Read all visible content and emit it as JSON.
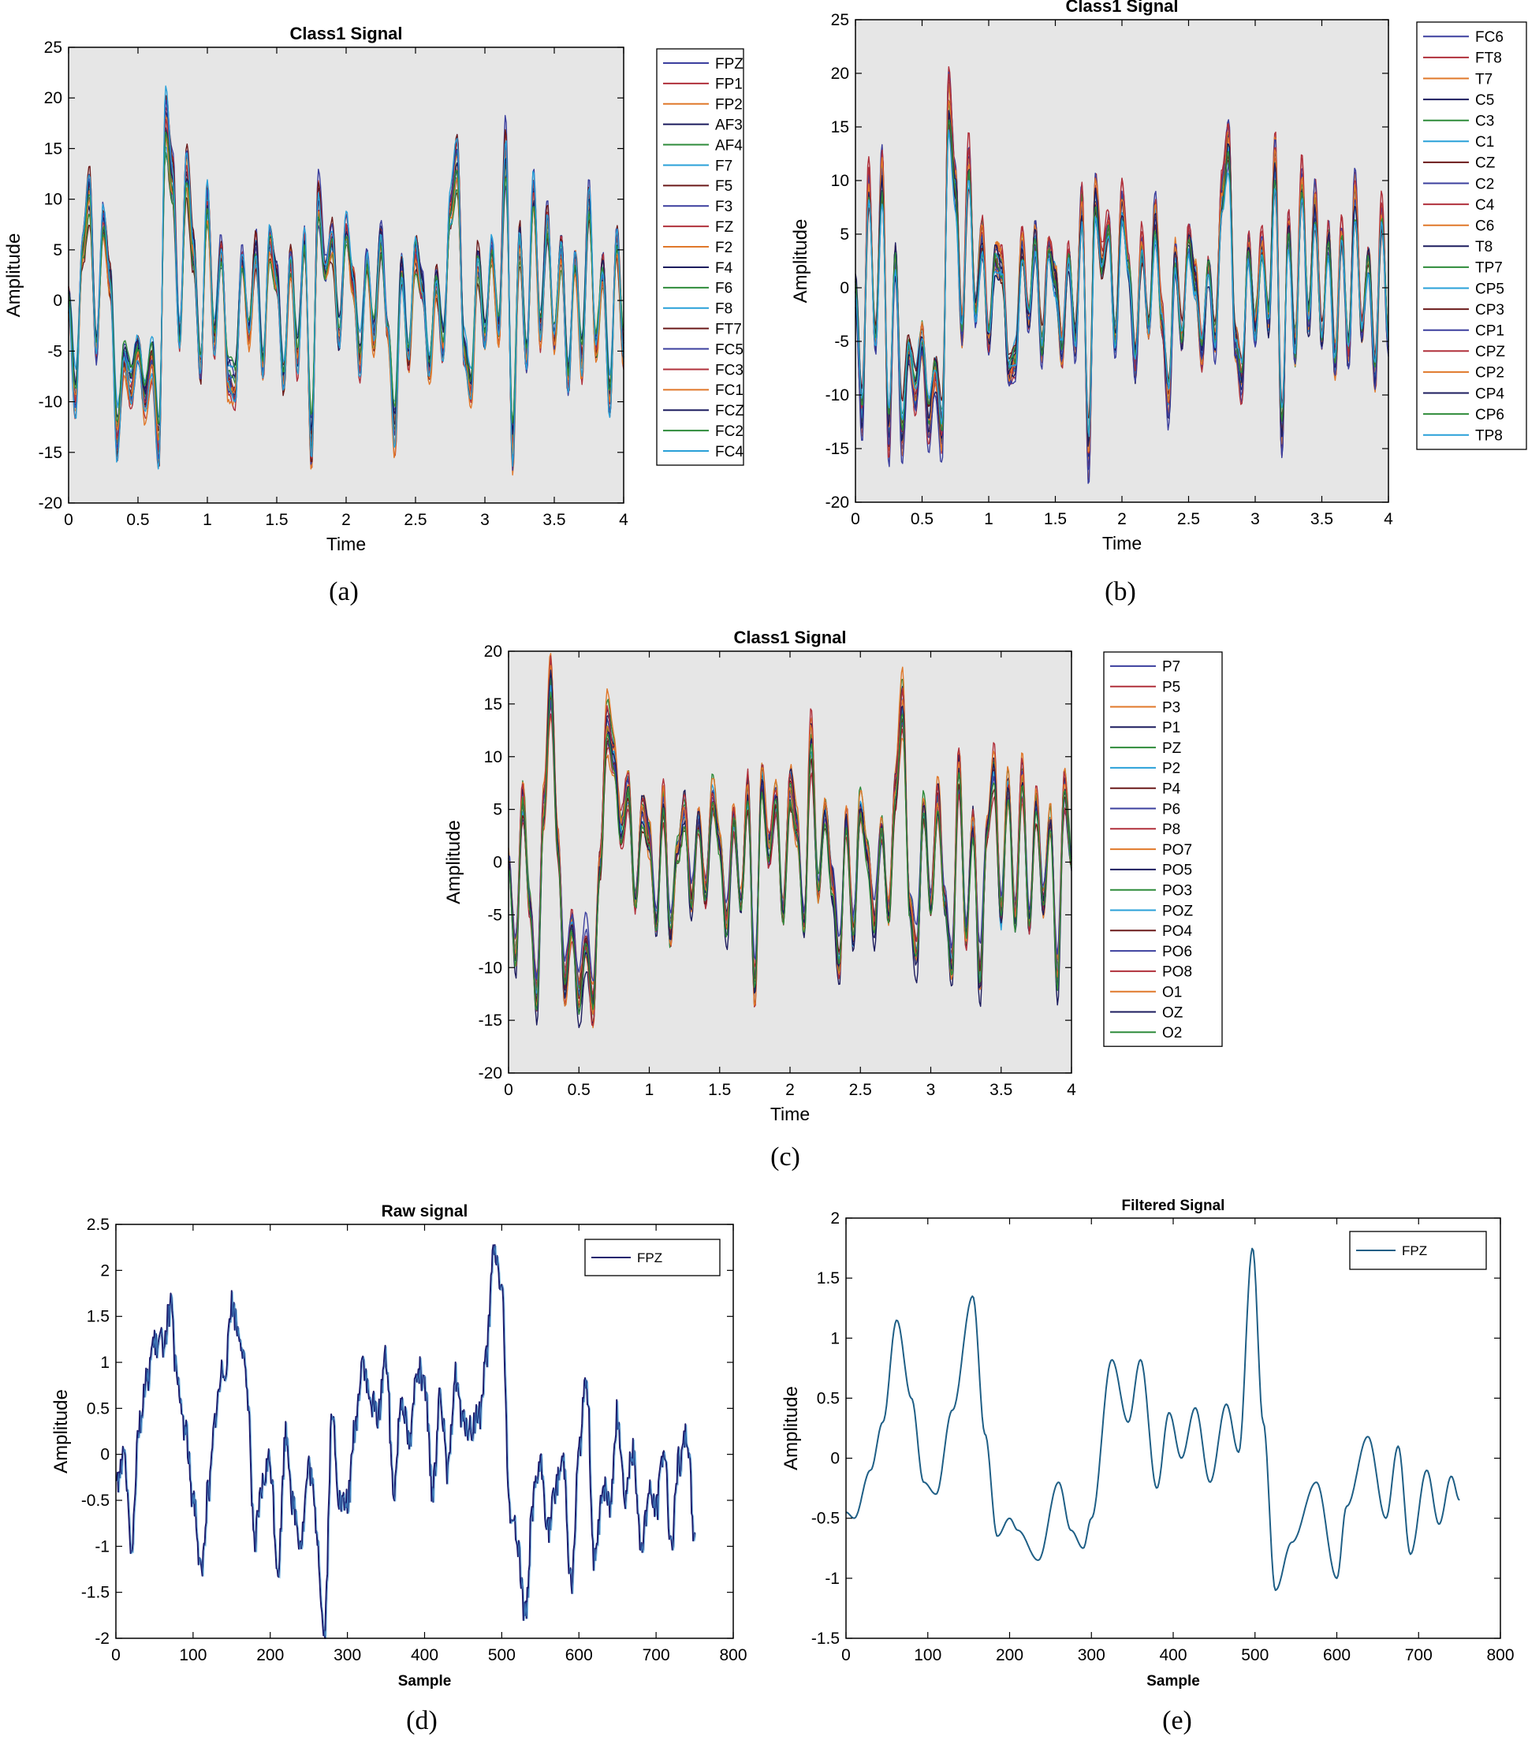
{
  "figure": {
    "captions": [
      "(a)",
      "(b)",
      "(c)",
      "(d)",
      "(e)"
    ]
  },
  "chart_data": [
    {
      "id": "a",
      "type": "line",
      "title": "Class1 Signal",
      "xlabel": "Time",
      "ylabel": "Amplitude",
      "xlim": [
        0,
        4
      ],
      "ylim": [
        -20,
        25
      ],
      "xticks": [
        0,
        0.5,
        1,
        1.5,
        2,
        2.5,
        3,
        3.5,
        4
      ],
      "yticks": [
        -20,
        -15,
        -10,
        -5,
        0,
        5,
        10,
        15,
        20,
        25
      ],
      "background": "#e6e6e6",
      "legend": "right-outside",
      "seed": 11,
      "envelope": {
        "x": [
          0,
          0.05,
          0.1,
          0.15,
          0.2,
          0.25,
          0.3,
          0.35,
          0.4,
          0.45,
          0.5,
          0.55,
          0.6,
          0.65,
          0.7,
          0.75,
          0.8,
          0.85,
          0.9,
          0.95,
          1.0,
          1.05,
          1.1,
          1.15,
          1.2,
          1.25,
          1.3,
          1.35,
          1.4,
          1.45,
          1.5,
          1.55,
          1.6,
          1.65,
          1.7,
          1.75,
          1.8,
          1.85,
          1.9,
          1.95,
          2.0,
          2.05,
          2.1,
          2.15,
          2.2,
          2.25,
          2.3,
          2.35,
          2.4,
          2.45,
          2.5,
          2.55,
          2.6,
          2.65,
          2.7,
          2.75,
          2.8,
          2.85,
          2.9,
          2.95,
          3.0,
          3.05,
          3.1,
          3.15,
          3.2,
          3.25,
          3.3,
          3.35,
          3.4,
          3.45,
          3.5,
          3.55,
          3.6,
          3.65,
          3.7,
          3.75,
          3.8,
          3.85,
          3.9,
          3.95,
          4.0
        ],
        "y": [
          0,
          -10,
          5,
          11,
          -5,
          8,
          2,
          -14,
          -6,
          -9,
          -5,
          -10,
          -6,
          -15,
          18,
          12,
          -4,
          13,
          5,
          -7,
          10,
          -4,
          5,
          -8,
          -9,
          4,
          -3,
          5,
          -7,
          6,
          2,
          -8,
          4,
          -6,
          6,
          -15,
          10,
          3,
          6,
          -4,
          7,
          2,
          -6,
          4,
          -4,
          6,
          -3,
          -13,
          3,
          -6,
          5,
          1,
          -7,
          2,
          -5,
          9,
          14,
          -5,
          -9,
          4,
          -4,
          5,
          -3,
          15,
          -15,
          6,
          -6,
          11,
          -3,
          8,
          -4,
          5,
          -8,
          4,
          -6,
          10,
          -5,
          3,
          -10,
          6,
          -5
        ]
      },
      "series": [
        {
          "name": "FPZ",
          "color": "#3b3f9e"
        },
        {
          "name": "FP1",
          "color": "#b0303b"
        },
        {
          "name": "FP2",
          "color": "#e0782a"
        },
        {
          "name": "AF3",
          "color": "#1c1c5e"
        },
        {
          "name": "AF4",
          "color": "#2e8b3a"
        },
        {
          "name": "F7",
          "color": "#29a0d8"
        },
        {
          "name": "F5",
          "color": "#6b1a1a"
        },
        {
          "name": "F3",
          "color": "#3b3f9e"
        },
        {
          "name": "FZ",
          "color": "#b0303b"
        },
        {
          "name": "F2",
          "color": "#e0782a"
        },
        {
          "name": "F4",
          "color": "#1c1c5e"
        },
        {
          "name": "F6",
          "color": "#2e8b3a"
        },
        {
          "name": "F8",
          "color": "#29a0d8"
        },
        {
          "name": "FT7",
          "color": "#6b1a1a"
        },
        {
          "name": "FC5",
          "color": "#3b3f9e"
        },
        {
          "name": "FC3",
          "color": "#b0303b"
        },
        {
          "name": "FC1",
          "color": "#e0782a"
        },
        {
          "name": "FCZ",
          "color": "#1c1c5e"
        },
        {
          "name": "FC2",
          "color": "#2e8b3a"
        },
        {
          "name": "FC4",
          "color": "#29a0d8"
        }
      ]
    },
    {
      "id": "b",
      "type": "line",
      "title": "Class1 Signal",
      "xlabel": "Time",
      "ylabel": "Amplitude",
      "xlim": [
        0,
        4
      ],
      "ylim": [
        -20,
        25
      ],
      "xticks": [
        0,
        0.5,
        1,
        1.5,
        2,
        2.5,
        3,
        3.5,
        4
      ],
      "yticks": [
        -20,
        -15,
        -10,
        -5,
        0,
        5,
        10,
        15,
        20,
        25
      ],
      "background": "#e6e6e6",
      "legend": "right-outside",
      "seed": 23,
      "envelope": {
        "x": [
          0,
          0.05,
          0.1,
          0.15,
          0.2,
          0.25,
          0.3,
          0.35,
          0.4,
          0.45,
          0.5,
          0.55,
          0.6,
          0.65,
          0.7,
          0.75,
          0.8,
          0.85,
          0.9,
          0.95,
          1.0,
          1.05,
          1.1,
          1.15,
          1.2,
          1.25,
          1.3,
          1.35,
          1.4,
          1.45,
          1.5,
          1.55,
          1.6,
          1.65,
          1.7,
          1.75,
          1.8,
          1.85,
          1.9,
          1.95,
          2.0,
          2.05,
          2.1,
          2.15,
          2.2,
          2.25,
          2.3,
          2.35,
          2.4,
          2.45,
          2.5,
          2.55,
          2.6,
          2.65,
          2.7,
          2.75,
          2.8,
          2.85,
          2.9,
          2.95,
          3.0,
          3.05,
          3.1,
          3.15,
          3.2,
          3.25,
          3.3,
          3.35,
          3.4,
          3.45,
          3.5,
          3.55,
          3.6,
          3.65,
          3.7,
          3.75,
          3.8,
          3.85,
          3.9,
          3.95,
          4.0
        ],
        "y": [
          0,
          -12,
          10,
          -5,
          11,
          -14,
          3,
          -14,
          -6,
          -10,
          -5,
          -13,
          -8,
          -14,
          18,
          10,
          -4,
          12,
          -2,
          5,
          -5,
          3,
          2,
          -8,
          -7,
          4,
          -3,
          5,
          -6,
          4,
          1,
          -6,
          3,
          -5,
          8,
          -16,
          9,
          2,
          6,
          -5,
          8,
          2,
          -7,
          4,
          -4,
          7,
          -3,
          -11,
          3,
          -5,
          5,
          1,
          -6,
          2,
          -5,
          9,
          14,
          -5,
          -9,
          4,
          -4,
          4,
          -3,
          12,
          -14,
          6,
          -6,
          10,
          -3,
          8,
          -5,
          5,
          -7,
          5,
          -6,
          9,
          -4,
          3,
          -8,
          7,
          -5
        ]
      },
      "series": [
        {
          "name": "FC6",
          "color": "#3b3f9e"
        },
        {
          "name": "FT8",
          "color": "#b0303b"
        },
        {
          "name": "T7",
          "color": "#e0782a"
        },
        {
          "name": "C5",
          "color": "#1c1c5e"
        },
        {
          "name": "C3",
          "color": "#2e8b3a"
        },
        {
          "name": "C1",
          "color": "#29a0d8"
        },
        {
          "name": "CZ",
          "color": "#6b1a1a"
        },
        {
          "name": "C2",
          "color": "#3b3f9e"
        },
        {
          "name": "C4",
          "color": "#b0303b"
        },
        {
          "name": "C6",
          "color": "#e0782a"
        },
        {
          "name": "T8",
          "color": "#1c1c5e"
        },
        {
          "name": "TP7",
          "color": "#2e8b3a"
        },
        {
          "name": "CP5",
          "color": "#29a0d8"
        },
        {
          "name": "CP3",
          "color": "#6b1a1a"
        },
        {
          "name": "CP1",
          "color": "#3b3f9e"
        },
        {
          "name": "CPZ",
          "color": "#b0303b"
        },
        {
          "name": "CP2",
          "color": "#e0782a"
        },
        {
          "name": "CP4",
          "color": "#1c1c5e"
        },
        {
          "name": "CP6",
          "color": "#2e8b3a"
        },
        {
          "name": "TP8",
          "color": "#29a0d8"
        }
      ]
    },
    {
      "id": "c",
      "type": "line",
      "title": "Class1 Signal",
      "xlabel": "Time",
      "ylabel": "Amplitude",
      "xlim": [
        0,
        4
      ],
      "ylim": [
        -20,
        20
      ],
      "xticks": [
        0,
        0.5,
        1,
        1.5,
        2,
        2.5,
        3,
        3.5,
        4
      ],
      "yticks": [
        -20,
        -15,
        -10,
        -5,
        0,
        5,
        10,
        15,
        20
      ],
      "background": "#e6e6e6",
      "legend": "right-outside",
      "seed": 37,
      "envelope": {
        "x": [
          0,
          0.05,
          0.1,
          0.15,
          0.2,
          0.25,
          0.3,
          0.35,
          0.4,
          0.45,
          0.5,
          0.55,
          0.6,
          0.65,
          0.7,
          0.75,
          0.8,
          0.85,
          0.9,
          0.95,
          1.0,
          1.05,
          1.1,
          1.15,
          1.2,
          1.25,
          1.3,
          1.35,
          1.4,
          1.45,
          1.5,
          1.55,
          1.6,
          1.65,
          1.7,
          1.75,
          1.8,
          1.85,
          1.9,
          1.95,
          2.0,
          2.05,
          2.1,
          2.15,
          2.2,
          2.25,
          2.3,
          2.35,
          2.4,
          2.45,
          2.5,
          2.55,
          2.6,
          2.65,
          2.7,
          2.75,
          2.8,
          2.85,
          2.9,
          2.95,
          3.0,
          3.05,
          3.1,
          3.15,
          3.2,
          3.25,
          3.3,
          3.35,
          3.4,
          3.45,
          3.5,
          3.55,
          3.6,
          3.65,
          3.7,
          3.75,
          3.8,
          3.85,
          3.9,
          3.95,
          4.0
        ],
        "y": [
          0,
          -9,
          6,
          -4,
          -13,
          5,
          17,
          2,
          -12,
          -6,
          -13,
          -8,
          -14,
          0,
          13,
          10,
          3,
          7,
          -4,
          5,
          2,
          -6,
          6,
          -7,
          1,
          5,
          -4,
          4,
          -3,
          6,
          2,
          -6,
          4,
          -4,
          7,
          -12,
          8,
          1,
          6,
          -5,
          7,
          3,
          -6,
          12,
          -3,
          5,
          -2,
          -10,
          4,
          -7,
          5,
          1,
          -6,
          3,
          -5,
          7,
          15,
          -4,
          -9,
          5,
          -4,
          6,
          -4,
          -10,
          9,
          -7,
          4,
          -11,
          3,
          9,
          -5,
          7,
          -5,
          8,
          -6,
          6,
          -4,
          4,
          -11,
          7,
          0
        ]
      },
      "series": [
        {
          "name": "P7",
          "color": "#3b3f9e"
        },
        {
          "name": "P5",
          "color": "#b0303b"
        },
        {
          "name": "P3",
          "color": "#e0782a"
        },
        {
          "name": "P1",
          "color": "#1c1c5e"
        },
        {
          "name": "PZ",
          "color": "#2e8b3a"
        },
        {
          "name": "P2",
          "color": "#29a0d8"
        },
        {
          "name": "P4",
          "color": "#6b1a1a"
        },
        {
          "name": "P6",
          "color": "#3b3f9e"
        },
        {
          "name": "P8",
          "color": "#b0303b"
        },
        {
          "name": "PO7",
          "color": "#e0782a"
        },
        {
          "name": "PO5",
          "color": "#1c1c5e"
        },
        {
          "name": "PO3",
          "color": "#2e8b3a"
        },
        {
          "name": "POZ",
          "color": "#29a0d8"
        },
        {
          "name": "PO4",
          "color": "#6b1a1a"
        },
        {
          "name": "PO6",
          "color": "#3b3f9e"
        },
        {
          "name": "PO8",
          "color": "#b0303b"
        },
        {
          "name": "O1",
          "color": "#e0782a"
        },
        {
          "name": "OZ",
          "color": "#1c1c5e"
        },
        {
          "name": "O2",
          "color": "#2e8b3a"
        }
      ]
    },
    {
      "id": "d",
      "type": "line",
      "title": "Raw signal",
      "xlabel": "Sample",
      "ylabel": "Amplitude",
      "xlim": [
        0,
        800
      ],
      "ylim": [
        -2,
        2.5
      ],
      "xticks": [
        0,
        100,
        200,
        300,
        400,
        500,
        600,
        700,
        800
      ],
      "yticks": [
        -2,
        -1.5,
        -1,
        -0.5,
        0,
        0.5,
        1,
        1.5,
        2,
        2.5
      ],
      "background": "#ffffff",
      "legend": "top-right",
      "seed": 51,
      "envelope": {
        "x": [
          0,
          10,
          20,
          30,
          40,
          50,
          60,
          70,
          80,
          90,
          100,
          110,
          120,
          130,
          140,
          150,
          160,
          170,
          180,
          190,
          200,
          210,
          220,
          230,
          240,
          250,
          260,
          270,
          280,
          290,
          300,
          310,
          320,
          330,
          340,
          350,
          360,
          370,
          380,
          390,
          400,
          410,
          420,
          430,
          440,
          450,
          460,
          470,
          480,
          490,
          500,
          510,
          520,
          530,
          540,
          550,
          560,
          570,
          580,
          590,
          600,
          610,
          620,
          630,
          640,
          650,
          660,
          670,
          680,
          690,
          700,
          710,
          720,
          730,
          740,
          750
        ],
        "y": [
          -0.2,
          0.1,
          -1,
          0.4,
          0.7,
          1.1,
          1.4,
          1.6,
          0.6,
          0.3,
          -0.5,
          -1.3,
          -0.2,
          0.4,
          0.8,
          1.7,
          1.3,
          0.7,
          -0.8,
          -0.5,
          -0.2,
          -1.1,
          0.2,
          -0.6,
          -0.9,
          -0.3,
          -0.8,
          -1.8,
          0.3,
          -0.6,
          -0.5,
          0.2,
          1.1,
          0.7,
          0.3,
          1.0,
          -0.3,
          0.6,
          0.2,
          1.0,
          0.5,
          -0.4,
          0.8,
          -0.3,
          0.9,
          0.3,
          0.1,
          0.5,
          1.2,
          2.1,
          1.8,
          -0.6,
          -1.0,
          -1.6,
          -0.5,
          -0.3,
          -0.8,
          -0.3,
          -0.1,
          -1.3,
          0.0,
          0.6,
          -1.1,
          -0.3,
          -0.6,
          0.5,
          -0.5,
          -0.1,
          -0.8,
          -0.4,
          -0.7,
          0.1,
          -1.0,
          -0.1,
          0.4,
          -0.9
        ]
      },
      "series": [
        {
          "name": "FPZ",
          "color": "#1c1c6e"
        }
      ]
    },
    {
      "id": "e",
      "type": "line",
      "title": "Filtered Signal",
      "xlabel": "Sample",
      "ylabel": "Amplitude",
      "xlim": [
        0,
        800
      ],
      "ylim": [
        -1.5,
        2
      ],
      "xticks": [
        0,
        100,
        200,
        300,
        400,
        500,
        600,
        700,
        800
      ],
      "yticks": [
        -1.5,
        -1,
        -0.5,
        0,
        0.5,
        1,
        1.5,
        2
      ],
      "background": "#ffffff",
      "legend": "top-right",
      "seed": 0,
      "envelope": {
        "x": [
          0,
          10,
          30,
          45,
          62,
          80,
          95,
          110,
          130,
          155,
          170,
          185,
          200,
          210,
          235,
          260,
          275,
          290,
          300,
          325,
          345,
          360,
          380,
          395,
          410,
          427,
          445,
          465,
          480,
          497,
          510,
          525,
          545,
          575,
          600,
          612,
          638,
          660,
          675,
          690,
          710,
          725,
          740,
          750
        ],
        "y": [
          -0.45,
          -0.5,
          -0.1,
          0.3,
          1.15,
          0.5,
          -0.2,
          -0.3,
          0.4,
          1.35,
          0.2,
          -0.65,
          -0.5,
          -0.6,
          -0.85,
          -0.2,
          -0.6,
          -0.75,
          -0.5,
          0.82,
          0.3,
          0.82,
          -0.25,
          0.38,
          0.0,
          0.42,
          -0.2,
          0.45,
          0.05,
          1.75,
          0.3,
          -1.1,
          -0.7,
          -0.2,
          -1.0,
          -0.4,
          0.18,
          -0.5,
          0.1,
          -0.8,
          -0.1,
          -0.55,
          -0.15,
          -0.35
        ]
      },
      "series": [
        {
          "name": "FPZ",
          "color": "#1f5f86"
        }
      ]
    }
  ]
}
